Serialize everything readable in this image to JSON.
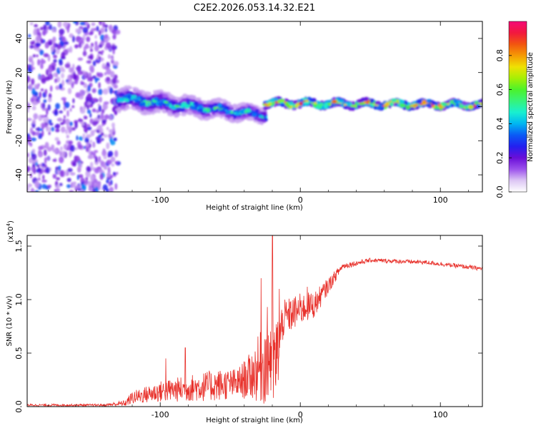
{
  "chart_data": [
    {
      "type": "heatmap",
      "title": "C2E2.2026.053.14.32.E21",
      "xlabel": "Height of straight line (km)",
      "ylabel": "Frequency (Hz)",
      "xlim": [
        -195,
        130
      ],
      "ylim": [
        -50,
        50
      ],
      "xticks": [
        -100,
        0,
        100
      ],
      "xtick_labels": [
        "-100",
        "0",
        "100"
      ],
      "yticks": [
        -40,
        -20,
        0,
        20,
        40
      ],
      "ytick_labels": [
        "-40",
        "-20",
        "0",
        "20",
        "40"
      ],
      "colorbar": {
        "label": "Normalized spectral amplitude",
        "range": [
          0.0,
          1.0
        ],
        "ticks": [
          0.0,
          0.2,
          0.4,
          0.6,
          0.8
        ],
        "tick_labels": [
          "0.0",
          "0.2",
          "0.4",
          "0.6",
          "0.8"
        ],
        "colormap": [
          "#ffffff",
          "#dcc6f4",
          "#9c52ec",
          "#6a0ed8",
          "#2320f0",
          "#0a5af5",
          "#00b6f2",
          "#19f0d0",
          "#36f37a",
          "#4cf22b",
          "#a7ef05",
          "#efe104",
          "#f59a05",
          "#f25510",
          "#f2183e",
          "#f50a78"
        ]
      },
      "regions": [
        {
          "name": "noise",
          "x_range": [
            -195,
            -130
          ],
          "freq_range": [
            -50,
            50
          ],
          "level": 0.15
        },
        {
          "name": "band",
          "x_range": [
            -130,
            -25
          ],
          "freq_center": [
            5,
            -5
          ],
          "freq_halfwidth": [
            6,
            4
          ],
          "level": 0.4
        },
        {
          "name": "line",
          "x_range": [
            -25,
            130
          ],
          "freq_center": [
            2,
            1
          ],
          "freq_halfwidth": [
            2,
            1.5
          ],
          "level": 0.7
        }
      ]
    },
    {
      "type": "line",
      "xlabel": "Height of straight line (km)",
      "ylabel": "SNR (10 * v/v)",
      "multiplier": "(x10",
      "multiplier_exp": "4",
      "multiplier_close": ")",
      "xlim": [
        -195,
        130
      ],
      "ylim": [
        0,
        1.6
      ],
      "xticks": [
        -100,
        0,
        100
      ],
      "xtick_labels": [
        "-100",
        "0",
        "100"
      ],
      "yticks": [
        0.0,
        0.5,
        1.0,
        1.5
      ],
      "ytick_labels": [
        "0.0",
        "0.5",
        "1.0",
        "1.5"
      ],
      "color": "#e8302a",
      "envelope": [
        {
          "x": -195,
          "base": 0.01,
          "amp": 0.02
        },
        {
          "x": -140,
          "base": 0.01,
          "amp": 0.02
        },
        {
          "x": -125,
          "base": 0.02,
          "amp": 0.06
        },
        {
          "x": -120,
          "base": 0.06,
          "amp": 0.12
        },
        {
          "x": -100,
          "base": 0.1,
          "amp": 0.2
        },
        {
          "x": -80,
          "base": 0.12,
          "amp": 0.25
        },
        {
          "x": -60,
          "base": 0.14,
          "amp": 0.3
        },
        {
          "x": -45,
          "base": 0.16,
          "amp": 0.28
        },
        {
          "x": -35,
          "base": 0.2,
          "amp": 0.45
        },
        {
          "x": -25,
          "base": 0.25,
          "amp": 0.8
        },
        {
          "x": -22,
          "base": 0.3,
          "amp": 1.1
        },
        {
          "x": -18,
          "base": 0.2,
          "amp": 0.9
        },
        {
          "x": -12,
          "base": 0.75,
          "amp": 0.35
        },
        {
          "x": 0,
          "base": 0.85,
          "amp": 0.3
        },
        {
          "x": 10,
          "base": 0.9,
          "amp": 0.25
        },
        {
          "x": 20,
          "base": 1.1,
          "amp": 0.15
        },
        {
          "x": 30,
          "base": 1.3,
          "amp": 0.06
        },
        {
          "x": 50,
          "base": 1.36,
          "amp": 0.04
        },
        {
          "x": 90,
          "base": 1.34,
          "amp": 0.04
        },
        {
          "x": 130,
          "base": 1.28,
          "amp": 0.04
        }
      ],
      "peaks": [
        {
          "x": -20,
          "y": 1.6
        },
        {
          "x": -28,
          "y": 1.2
        },
        {
          "x": -15,
          "y": 1.1
        },
        {
          "x": 5,
          "y": 1.12
        },
        {
          "x": -82,
          "y": 0.55
        },
        {
          "x": -96,
          "y": 0.45
        }
      ]
    }
  ]
}
